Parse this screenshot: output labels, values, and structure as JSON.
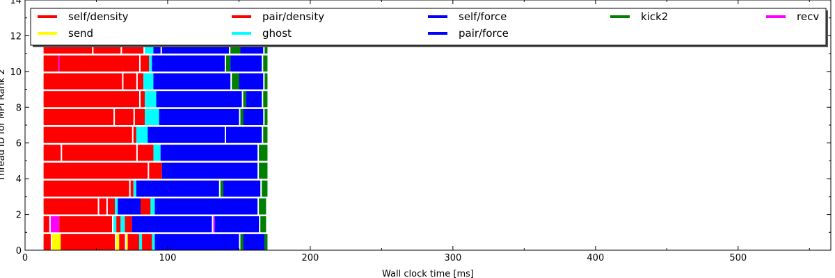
{
  "chart_data": {
    "type": "bar",
    "orientation": "horizontal-timeline",
    "title": "",
    "xlabel": "Wall clock time [ms]",
    "ylabel": "Thread ID for MPI Rank 2",
    "xlim": [
      0,
      565
    ],
    "ylim": [
      0,
      14
    ],
    "xticks": [
      0,
      100,
      200,
      300,
      400,
      500
    ],
    "yticks": [
      0,
      2,
      4,
      6,
      8,
      10,
      12,
      14
    ],
    "grid": false,
    "legend_placement": "top",
    "colors": {
      "self/density": "#ff0000",
      "pair/density": "#ff0000",
      "self/force": "#0000ff",
      "pair/force": "#0000ff",
      "kick2": "#008000",
      "send": "#ffff00",
      "ghost": "#00ffff",
      "recv": "#ff00ff"
    },
    "legend": [
      {
        "label": "self/density",
        "color": "#ff0000"
      },
      {
        "label": "pair/density",
        "color": "#ff0000"
      },
      {
        "label": "self/force",
        "color": "#0000ff"
      },
      {
        "label": "kick2",
        "color": "#008000"
      },
      {
        "label": "recv",
        "color": "#ff00ff"
      },
      {
        "label": "send",
        "color": "#ffff00"
      },
      {
        "label": "ghost",
        "color": "#00ffff"
      },
      {
        "label": "pair/force",
        "color": "#0000ff"
      }
    ],
    "threads": [
      {
        "id": 0,
        "segments": [
          {
            "task": "pair/density",
            "start": 13,
            "end": 18
          },
          {
            "task": "send",
            "start": 19,
            "end": 25
          },
          {
            "task": "pair/density",
            "start": 25,
            "end": 63
          },
          {
            "task": "send",
            "start": 64,
            "end": 66
          },
          {
            "task": "pair/density",
            "start": 66,
            "end": 70
          },
          {
            "task": "send",
            "start": 71,
            "end": 72
          },
          {
            "task": "pair/density",
            "start": 72,
            "end": 80
          },
          {
            "task": "ghost",
            "start": 80,
            "end": 82
          },
          {
            "task": "pair/density",
            "start": 82,
            "end": 89
          },
          {
            "task": "ghost",
            "start": 89,
            "end": 91
          },
          {
            "task": "self/force",
            "start": 91,
            "end": 150
          },
          {
            "task": "kick2",
            "start": 151,
            "end": 153
          },
          {
            "task": "self/force",
            "start": 153,
            "end": 168
          },
          {
            "task": "kick2",
            "start": 168,
            "end": 170
          }
        ]
      },
      {
        "id": 1,
        "segments": [
          {
            "task": "pair/density",
            "start": 13,
            "end": 17
          },
          {
            "task": "recv",
            "start": 18,
            "end": 24
          },
          {
            "task": "pair/density",
            "start": 24,
            "end": 61
          },
          {
            "task": "ghost",
            "start": 62,
            "end": 64
          },
          {
            "task": "pair/density",
            "start": 64,
            "end": 67
          },
          {
            "task": "ghost",
            "start": 67,
            "end": 70
          },
          {
            "task": "pair/density",
            "start": 70,
            "end": 75
          },
          {
            "task": "self/force",
            "start": 75,
            "end": 131
          },
          {
            "task": "recv",
            "start": 132,
            "end": 133
          },
          {
            "task": "self/force",
            "start": 133,
            "end": 164
          },
          {
            "task": "kick2",
            "start": 165,
            "end": 169
          }
        ]
      },
      {
        "id": 2,
        "segments": [
          {
            "task": "pair/density",
            "start": 13,
            "end": 51
          },
          {
            "task": "pair/density",
            "start": 52,
            "end": 57
          },
          {
            "task": "pair/density",
            "start": 58,
            "end": 63
          },
          {
            "task": "ghost",
            "start": 63,
            "end": 65
          },
          {
            "task": "self/force",
            "start": 65,
            "end": 81
          },
          {
            "task": "pair/density",
            "start": 81,
            "end": 88
          },
          {
            "task": "ghost",
            "start": 88,
            "end": 91
          },
          {
            "task": "self/force",
            "start": 91,
            "end": 163
          },
          {
            "task": "kick2",
            "start": 164,
            "end": 169
          }
        ]
      },
      {
        "id": 3,
        "segments": [
          {
            "task": "pair/density",
            "start": 13,
            "end": 73
          },
          {
            "task": "pair/density",
            "start": 74,
            "end": 76
          },
          {
            "task": "ghost",
            "start": 76,
            "end": 78
          },
          {
            "task": "self/force",
            "start": 78,
            "end": 136
          },
          {
            "task": "kick2",
            "start": 137,
            "end": 139
          },
          {
            "task": "self/force",
            "start": 139,
            "end": 165
          },
          {
            "task": "kick2",
            "start": 166,
            "end": 170
          }
        ]
      },
      {
        "id": 4,
        "segments": [
          {
            "task": "pair/density",
            "start": 13,
            "end": 86
          },
          {
            "task": "pair/density",
            "start": 87,
            "end": 96
          },
          {
            "task": "self/force",
            "start": 96,
            "end": 163
          },
          {
            "task": "kick2",
            "start": 164,
            "end": 170
          }
        ]
      },
      {
        "id": 5,
        "segments": [
          {
            "task": "pair/density",
            "start": 13,
            "end": 25
          },
          {
            "task": "pair/density",
            "start": 26,
            "end": 78
          },
          {
            "task": "pair/density",
            "start": 79,
            "end": 90
          },
          {
            "task": "ghost",
            "start": 90,
            "end": 95
          },
          {
            "task": "self/force",
            "start": 95,
            "end": 163
          },
          {
            "task": "kick2",
            "start": 164,
            "end": 170
          }
        ]
      },
      {
        "id": 6,
        "segments": [
          {
            "task": "pair/density",
            "start": 13,
            "end": 75
          },
          {
            "task": "pair/density",
            "start": 76,
            "end": 78
          },
          {
            "task": "ghost",
            "start": 78,
            "end": 86
          },
          {
            "task": "self/force",
            "start": 86,
            "end": 140
          },
          {
            "task": "self/force",
            "start": 141,
            "end": 166
          },
          {
            "task": "kick2",
            "start": 167,
            "end": 170
          }
        ]
      },
      {
        "id": 7,
        "segments": [
          {
            "task": "pair/density",
            "start": 13,
            "end": 62
          },
          {
            "task": "pair/density",
            "start": 63,
            "end": 76
          },
          {
            "task": "pair/density",
            "start": 77,
            "end": 84
          },
          {
            "task": "ghost",
            "start": 84,
            "end": 94
          },
          {
            "task": "self/force",
            "start": 94,
            "end": 150
          },
          {
            "task": "kick2",
            "start": 151,
            "end": 153
          },
          {
            "task": "self/force",
            "start": 153,
            "end": 167
          },
          {
            "task": "kick2",
            "start": 168,
            "end": 170
          }
        ]
      },
      {
        "id": 8,
        "segments": [
          {
            "task": "pair/density",
            "start": 13,
            "end": 80
          },
          {
            "task": "pair/density",
            "start": 81,
            "end": 84
          },
          {
            "task": "ghost",
            "start": 84,
            "end": 92
          },
          {
            "task": "self/force",
            "start": 92,
            "end": 152
          },
          {
            "task": "kick2",
            "start": 153,
            "end": 155
          },
          {
            "task": "self/force",
            "start": 155,
            "end": 166
          },
          {
            "task": "kick2",
            "start": 167,
            "end": 170
          }
        ]
      },
      {
        "id": 9,
        "segments": [
          {
            "task": "pair/density",
            "start": 13,
            "end": 68
          },
          {
            "task": "pair/density",
            "start": 69,
            "end": 78
          },
          {
            "task": "pair/density",
            "start": 79,
            "end": 83
          },
          {
            "task": "ghost",
            "start": 83,
            "end": 90
          },
          {
            "task": "self/force",
            "start": 90,
            "end": 144
          },
          {
            "task": "kick2",
            "start": 145,
            "end": 150
          },
          {
            "task": "self/force",
            "start": 150,
            "end": 167
          },
          {
            "task": "kick2",
            "start": 168,
            "end": 170
          }
        ]
      },
      {
        "id": 10,
        "segments": [
          {
            "task": "pair/density",
            "start": 13,
            "end": 23
          },
          {
            "task": "recv",
            "start": 23,
            "end": 24
          },
          {
            "task": "pair/density",
            "start": 24,
            "end": 80
          },
          {
            "task": "pair/density",
            "start": 81,
            "end": 87
          },
          {
            "task": "ghost",
            "start": 87,
            "end": 89
          },
          {
            "task": "self/force",
            "start": 89,
            "end": 140
          },
          {
            "task": "kick2",
            "start": 141,
            "end": 144
          },
          {
            "task": "self/force",
            "start": 144,
            "end": 166
          },
          {
            "task": "kick2",
            "start": 167,
            "end": 170
          }
        ]
      },
      {
        "id": 11,
        "segments": [
          {
            "task": "pair/density",
            "start": 13,
            "end": 47
          },
          {
            "task": "pair/density",
            "start": 48,
            "end": 67
          },
          {
            "task": "pair/density",
            "start": 68,
            "end": 83
          },
          {
            "task": "ghost",
            "start": 84,
            "end": 90
          },
          {
            "task": "self/force",
            "start": 90,
            "end": 95
          },
          {
            "task": "self/force",
            "start": 96,
            "end": 143
          },
          {
            "task": "kick2",
            "start": 144,
            "end": 151
          },
          {
            "task": "self/force",
            "start": 151,
            "end": 167
          },
          {
            "task": "kick2",
            "start": 168,
            "end": 170
          }
        ]
      }
    ]
  }
}
